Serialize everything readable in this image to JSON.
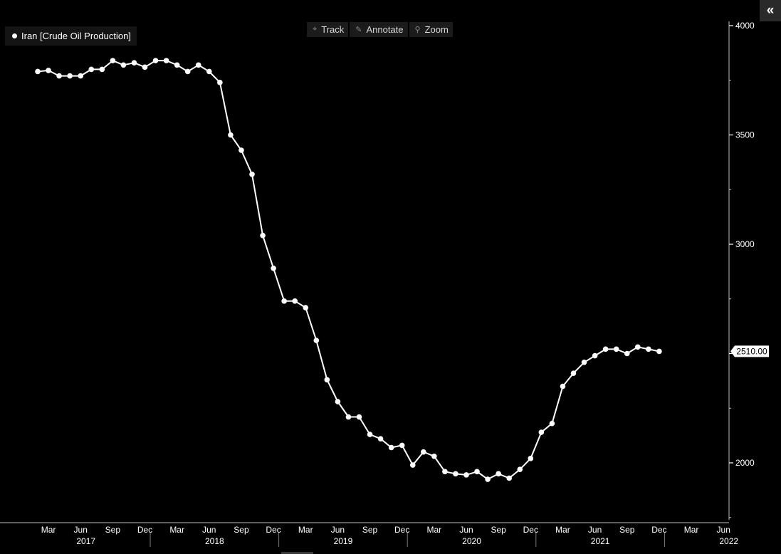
{
  "legend": {
    "label": "Iran [Crude Oil Production]"
  },
  "toolbar": {
    "track": "Track",
    "annotate": "Annotate",
    "zoom": "Zoom"
  },
  "panel": {
    "collapse_glyph": "«"
  },
  "chart_data": {
    "type": "line",
    "ylim": [
      1750,
      4000
    ],
    "yticks": [
      2000,
      2500,
      3000,
      3500,
      4000
    ],
    "last_value_label": "2510.00",
    "x_month_labels": [
      "Mar",
      "Jun",
      "Sep",
      "Dec",
      "Mar",
      "Jun",
      "Sep",
      "Dec",
      "Mar",
      "Jun",
      "Sep",
      "Dec",
      "Mar",
      "Jun",
      "Sep",
      "Dec",
      "Mar",
      "Jun",
      "Sep",
      "Dec",
      "Mar",
      "Jun"
    ],
    "x_year_labels": [
      "2017",
      "2018",
      "2019",
      "2020",
      "2021",
      "2022"
    ],
    "series": [
      {
        "name": "Iran [Crude Oil Production]",
        "color": "#ffffff",
        "x": [
          "2017-02",
          "2017-03",
          "2017-04",
          "2017-05",
          "2017-06",
          "2017-07",
          "2017-08",
          "2017-09",
          "2017-10",
          "2017-11",
          "2017-12",
          "2018-01",
          "2018-02",
          "2018-03",
          "2018-04",
          "2018-05",
          "2018-06",
          "2018-07",
          "2018-08",
          "2018-09",
          "2018-10",
          "2018-11",
          "2018-12",
          "2019-01",
          "2019-02",
          "2019-03",
          "2019-04",
          "2019-05",
          "2019-06",
          "2019-07",
          "2019-08",
          "2019-09",
          "2019-10",
          "2019-11",
          "2019-12",
          "2020-01",
          "2020-02",
          "2020-03",
          "2020-04",
          "2020-05",
          "2020-06",
          "2020-07",
          "2020-08",
          "2020-09",
          "2020-10",
          "2020-11",
          "2020-12",
          "2021-01",
          "2021-02",
          "2021-03",
          "2021-04",
          "2021-05",
          "2021-06",
          "2021-07",
          "2021-08",
          "2021-09",
          "2021-10",
          "2021-11",
          "2021-12"
        ],
        "values": [
          3790,
          3795,
          3770,
          3770,
          3770,
          3800,
          3800,
          3840,
          3820,
          3830,
          3810,
          3840,
          3840,
          3820,
          3790,
          3820,
          3790,
          3740,
          3500,
          3430,
          3320,
          3040,
          2890,
          2740,
          2740,
          2710,
          2560,
          2380,
          2280,
          2210,
          2210,
          2130,
          2110,
          2070,
          2080,
          1990,
          2050,
          2030,
          1960,
          1950,
          1945,
          1960,
          1925,
          1950,
          1930,
          1970,
          2020,
          2140,
          2180,
          2350,
          2410,
          2460,
          2490,
          2520,
          2520,
          2500,
          2530,
          2520,
          2510
        ]
      }
    ]
  }
}
